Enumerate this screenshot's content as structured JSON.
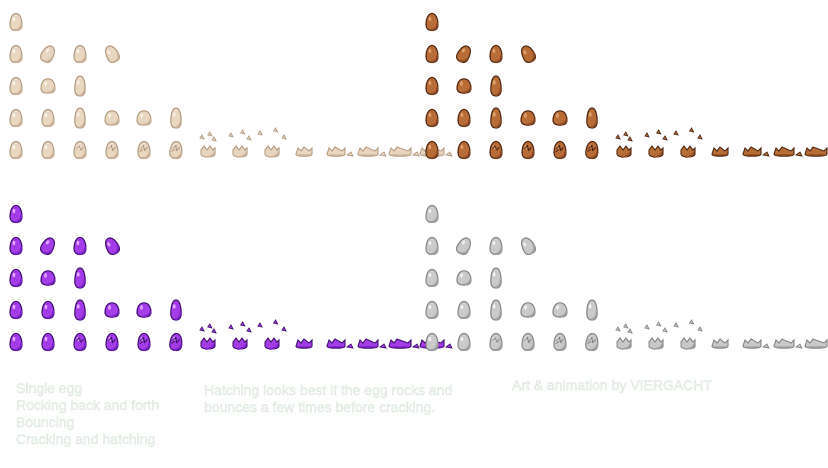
{
  "sprite_sheet": {
    "variants": [
      {
        "name": "cream",
        "fill": "#e9d6c1",
        "shade": "#cdb69d",
        "outline": "#b39b82",
        "highlight": "#f8efe4"
      },
      {
        "name": "brown",
        "fill": "#b86d37",
        "shade": "#8c4a20",
        "outline": "#4e2612",
        "highlight": "#dca06e"
      },
      {
        "name": "purple",
        "fill": "#a43de8",
        "shade": "#7a1fc2",
        "outline": "#3f0d6e",
        "highlight": "#e0a6ff"
      },
      {
        "name": "gray",
        "fill": "#c9c9c9",
        "shade": "#a2a2a2",
        "outline": "#858585",
        "highlight": "#efefef"
      }
    ],
    "rows": [
      {
        "animation": "single",
        "frames": [
          "upright"
        ]
      },
      {
        "animation": "rocking",
        "frames": [
          "upright",
          "tilt-right",
          "upright",
          "tilt-left"
        ]
      },
      {
        "animation": "bouncing",
        "frames": [
          "upright",
          "squash",
          "stretch"
        ]
      },
      {
        "animation": "bounce-long",
        "frames": [
          "upright",
          "upright",
          "stretch",
          "squash",
          "squash",
          "stretch"
        ]
      },
      {
        "animation": "hatching",
        "frames": [
          "upright",
          "upright",
          "crack-1",
          "crack-2",
          "crack-3",
          "crack-4",
          "burst-1",
          "burst-2",
          "burst-3",
          "shell-1",
          "shell-2",
          "shell-3",
          "shell-4",
          "shell-5"
        ]
      }
    ]
  },
  "captions": {
    "legend_lines": [
      "Single egg",
      "Rocking back and forth",
      "Bouncing",
      "Cracking and hatching"
    ],
    "tip_lines": [
      "Hatching looks best if the egg rocks and",
      "bounces a few times before cracking."
    ],
    "credit": "Art & animation by VIERGACHT"
  }
}
